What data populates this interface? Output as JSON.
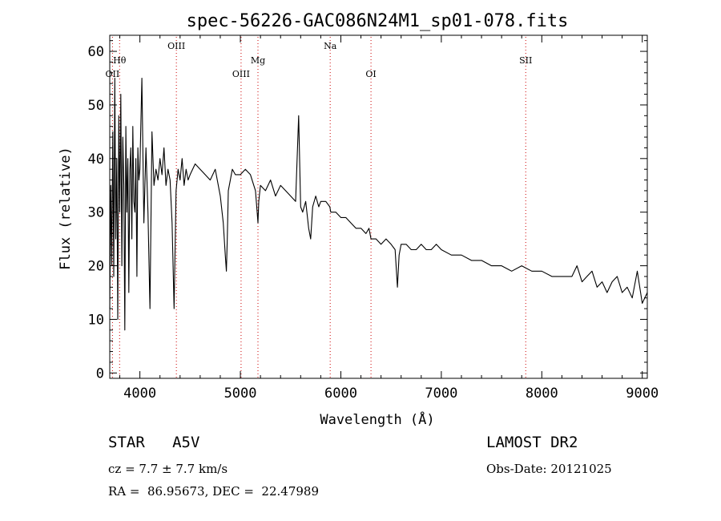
{
  "chart_data": {
    "type": "line",
    "title": "spec-56226-GAC086N24M1_sp01-078.fits",
    "xlabel": "Wavelength (Å)",
    "ylabel": "Flux (relative)",
    "xlim": [
      3700,
      9050
    ],
    "ylim": [
      -1,
      63
    ],
    "xticks": [
      4000,
      5000,
      6000,
      7000,
      8000,
      9000
    ],
    "yticks": [
      0,
      10,
      20,
      30,
      40,
      50,
      60
    ],
    "grid": false,
    "line_color": "#000000",
    "marker_color": "#cc0000",
    "spectral_lines": [
      {
        "label": "OII",
        "x": 3727,
        "tier": "low"
      },
      {
        "label": "Hθ",
        "x": 3798,
        "tier": "mid"
      },
      {
        "label": "OIII",
        "x": 4363,
        "tier": "top"
      },
      {
        "label": "OIII",
        "x": 5007,
        "tier": "low"
      },
      {
        "label": "Mg",
        "x": 5175,
        "tier": "mid"
      },
      {
        "label": "Na",
        "x": 5894,
        "tier": "top"
      },
      {
        "label": "OI",
        "x": 6300,
        "tier": "low"
      },
      {
        "label": "SII",
        "x": 7840,
        "tier": "mid"
      }
    ],
    "series": [
      {
        "x": [
          3700,
          3710,
          3720,
          3730,
          3740,
          3750,
          3760,
          3770,
          3780,
          3790,
          3800,
          3810,
          3820,
          3830,
          3840,
          3850,
          3860,
          3870,
          3880,
          3890,
          3900,
          3910,
          3920,
          3930,
          3940,
          3950,
          3960,
          3970,
          3980,
          3990,
          4000,
          4020,
          4040,
          4060,
          4080,
          4100,
          4120,
          4140,
          4160,
          4180,
          4200,
          4220,
          4240,
          4260,
          4280,
          4300,
          4320,
          4340,
          4360,
          4380,
          4400,
          4420,
          4440,
          4460,
          4480,
          4500,
          4550,
          4600,
          4650,
          4700,
          4750,
          4800,
          4830,
          4850,
          4861,
          4870,
          4880,
          4900,
          4920,
          4950,
          5000,
          5050,
          5100,
          5150,
          5167,
          5175,
          5183,
          5200,
          5250,
          5300,
          5350,
          5400,
          5450,
          5500,
          5550,
          5580,
          5600,
          5620,
          5650,
          5680,
          5700,
          5720,
          5750,
          5780,
          5800,
          5850,
          5890,
          5900,
          5950,
          6000,
          6050,
          6100,
          6150,
          6200,
          6250,
          6280,
          6300,
          6350,
          6400,
          6450,
          6500,
          6540,
          6563,
          6580,
          6600,
          6650,
          6700,
          6750,
          6800,
          6850,
          6900,
          6950,
          7000,
          7100,
          7200,
          7300,
          7400,
          7500,
          7600,
          7700,
          7800,
          7900,
          8000,
          8100,
          8200,
          8300,
          8350,
          8400,
          8450,
          8500,
          8550,
          8600,
          8650,
          8700,
          8750,
          8800,
          8850,
          8900,
          8950,
          9000,
          9050
        ],
        "y": [
          12,
          35,
          20,
          45,
          18,
          55,
          25,
          40,
          10,
          48,
          30,
          52,
          20,
          44,
          35,
          8,
          46,
          30,
          40,
          15,
          38,
          42,
          25,
          46,
          32,
          30,
          40,
          18,
          42,
          36,
          38,
          55,
          28,
          42,
          30,
          12,
          45,
          35,
          38,
          36,
          40,
          37,
          42,
          35,
          38,
          36,
          28,
          12,
          34,
          38,
          36,
          40,
          35,
          38,
          36,
          37,
          39,
          38,
          37,
          36,
          38,
          33,
          28,
          22,
          19,
          25,
          34,
          36,
          38,
          37,
          37,
          38,
          37,
          34,
          30,
          28,
          32,
          35,
          34,
          36,
          33,
          35,
          34,
          33,
          32,
          48,
          31,
          30,
          32,
          27,
          25,
          31,
          33,
          31,
          32,
          32,
          31,
          30,
          30,
          29,
          29,
          28,
          27,
          27,
          26,
          27,
          25,
          25,
          24,
          25,
          24,
          23,
          16,
          22,
          24,
          24,
          23,
          23,
          24,
          23,
          23,
          24,
          23,
          22,
          22,
          21,
          21,
          20,
          20,
          19,
          20,
          19,
          19,
          18,
          18,
          18,
          20,
          17,
          18,
          19,
          16,
          17,
          15,
          17,
          18,
          15,
          16,
          14,
          19,
          13,
          15
        ]
      }
    ]
  },
  "footer": {
    "object_class": "STAR   A5V",
    "redshift": "cz = 7.7 ± 7.7 km/s",
    "coordinates": "RA =  86.95673, DEC =  22.47989",
    "survey": "LAMOST DR2",
    "obs_date": "Obs-Date: 20121025"
  }
}
